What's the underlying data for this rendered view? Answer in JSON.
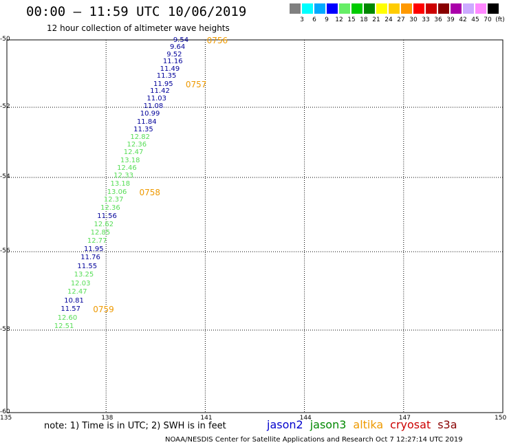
{
  "header": {
    "title": "00:00 – 11:59 UTC 10/06/2019",
    "subtitle": "12 hour collection of altimeter wave heights"
  },
  "colorbar": {
    "unit": "(ft)",
    "labels": [
      "3",
      "6",
      "9",
      "12",
      "15",
      "18",
      "21",
      "24",
      "27",
      "30",
      "33",
      "36",
      "39",
      "42",
      "45",
      "70"
    ],
    "colors": [
      "#808080",
      "#00ffff",
      "#00aaff",
      "#0000ff",
      "#66ee66",
      "#00cc00",
      "#008800",
      "#ffff00",
      "#ffcc00",
      "#ff9900",
      "#ff0000",
      "#cc0000",
      "#880000",
      "#aa00aa",
      "#ccaaff",
      "#ff88ff",
      "#000000"
    ]
  },
  "map": {
    "lon_ticks": [
      "135",
      "138",
      "141",
      "144",
      "147",
      "150"
    ],
    "lat_ticks": [
      "-50",
      "-52",
      "-54",
      "-56",
      "-58",
      "-60"
    ]
  },
  "observations": [
    {
      "lat": -50.02,
      "lon": 140.78,
      "value": "9.54",
      "color": "#000099"
    },
    {
      "lat": -50.22,
      "lon": 140.68,
      "value": "9.64",
      "color": "#000099"
    },
    {
      "lat": -50.44,
      "lon": 140.58,
      "value": "9.52",
      "color": "#000099"
    },
    {
      "lat": -50.66,
      "lon": 140.47,
      "value": "11.16",
      "color": "#000099"
    },
    {
      "lat": -50.88,
      "lon": 140.38,
      "value": "11.49",
      "color": "#000099"
    },
    {
      "lat": -51.08,
      "lon": 140.28,
      "value": "11.35",
      "color": "#000099"
    },
    {
      "lat": -51.32,
      "lon": 140.18,
      "value": "11.95",
      "color": "#000099"
    },
    {
      "lat": -51.54,
      "lon": 140.08,
      "value": "11.42",
      "color": "#000099"
    },
    {
      "lat": -51.76,
      "lon": 139.98,
      "value": "11.03",
      "color": "#000099"
    },
    {
      "lat": -51.98,
      "lon": 139.88,
      "value": "11.08",
      "color": "#000099"
    },
    {
      "lat": -52.2,
      "lon": 139.78,
      "value": "10.99",
      "color": "#000099"
    },
    {
      "lat": -52.44,
      "lon": 139.68,
      "value": "11.84",
      "color": "#000099"
    },
    {
      "lat": -52.64,
      "lon": 139.58,
      "value": "11.35",
      "color": "#000099"
    },
    {
      "lat": -52.86,
      "lon": 139.48,
      "value": "12.82",
      "color": "#55dd55"
    },
    {
      "lat": -53.08,
      "lon": 139.38,
      "value": "12.36",
      "color": "#55dd55"
    },
    {
      "lat": -53.3,
      "lon": 139.28,
      "value": "12.47",
      "color": "#55dd55"
    },
    {
      "lat": -53.52,
      "lon": 139.18,
      "value": "13.18",
      "color": "#55dd55"
    },
    {
      "lat": -53.74,
      "lon": 139.08,
      "value": "12.46",
      "color": "#55dd55"
    },
    {
      "lat": -53.96,
      "lon": 138.98,
      "value": "12.33",
      "color": "#55dd55"
    },
    {
      "lat": -54.18,
      "lon": 138.88,
      "value": "13.18",
      "color": "#55dd55"
    },
    {
      "lat": -54.4,
      "lon": 138.78,
      "value": "13.06",
      "color": "#55dd55"
    },
    {
      "lat": -54.62,
      "lon": 138.68,
      "value": "12.37",
      "color": "#55dd55"
    },
    {
      "lat": -54.84,
      "lon": 138.58,
      "value": "12.36",
      "color": "#55dd55"
    },
    {
      "lat": -55.06,
      "lon": 138.48,
      "value": "11.56",
      "color": "#000099"
    },
    {
      "lat": -55.28,
      "lon": 138.38,
      "value": "12.62",
      "color": "#55dd55"
    },
    {
      "lat": -55.5,
      "lon": 138.28,
      "value": "12.85",
      "color": "#55dd55"
    },
    {
      "lat": -55.72,
      "lon": 138.18,
      "value": "12.77",
      "color": "#55dd55"
    },
    {
      "lat": -55.94,
      "lon": 138.08,
      "value": "11.95",
      "color": "#000099"
    },
    {
      "lat": -56.16,
      "lon": 137.98,
      "value": "11.76",
      "color": "#000099"
    },
    {
      "lat": -56.38,
      "lon": 137.88,
      "value": "11.55",
      "color": "#000099"
    },
    {
      "lat": -56.6,
      "lon": 137.78,
      "value": "13.25",
      "color": "#55dd55"
    },
    {
      "lat": -56.82,
      "lon": 137.68,
      "value": "12.03",
      "color": "#55dd55"
    },
    {
      "lat": -57.04,
      "lon": 137.58,
      "value": "12.47",
      "color": "#55dd55"
    },
    {
      "lat": -57.26,
      "lon": 137.48,
      "value": "10.81",
      "color": "#000099"
    },
    {
      "lat": -57.48,
      "lon": 137.38,
      "value": "11.57",
      "color": "#000099"
    },
    {
      "lat": -57.7,
      "lon": 137.28,
      "value": "12.60",
      "color": "#55dd55"
    },
    {
      "lat": -57.92,
      "lon": 137.18,
      "value": "12.51",
      "color": "#55dd55"
    }
  ],
  "time_labels": [
    {
      "text": "0756",
      "lat": -50.02,
      "lon": 141.42
    },
    {
      "text": "0757",
      "lat": -51.32,
      "lon": 140.78
    },
    {
      "text": "0758",
      "lat": -54.4,
      "lon": 139.38
    },
    {
      "text": "0759",
      "lat": -57.48,
      "lon": 137.98
    }
  ],
  "footer": {
    "note": "note:  1) Time is in UTC;  2) SWH is in feet",
    "legend": [
      {
        "name": "jason2",
        "color": "#0000cc"
      },
      {
        "name": "jason3",
        "color": "#008800"
      },
      {
        "name": "altika",
        "color": "#ee9900"
      },
      {
        "name": "cryosat",
        "color": "#cc0000"
      },
      {
        "name": "s3a",
        "color": "#880000"
      }
    ],
    "credit": "NOAA/NESDIS Center for Satellite Applications and Research     Oct  7 12:27:14 UTC 2019"
  }
}
